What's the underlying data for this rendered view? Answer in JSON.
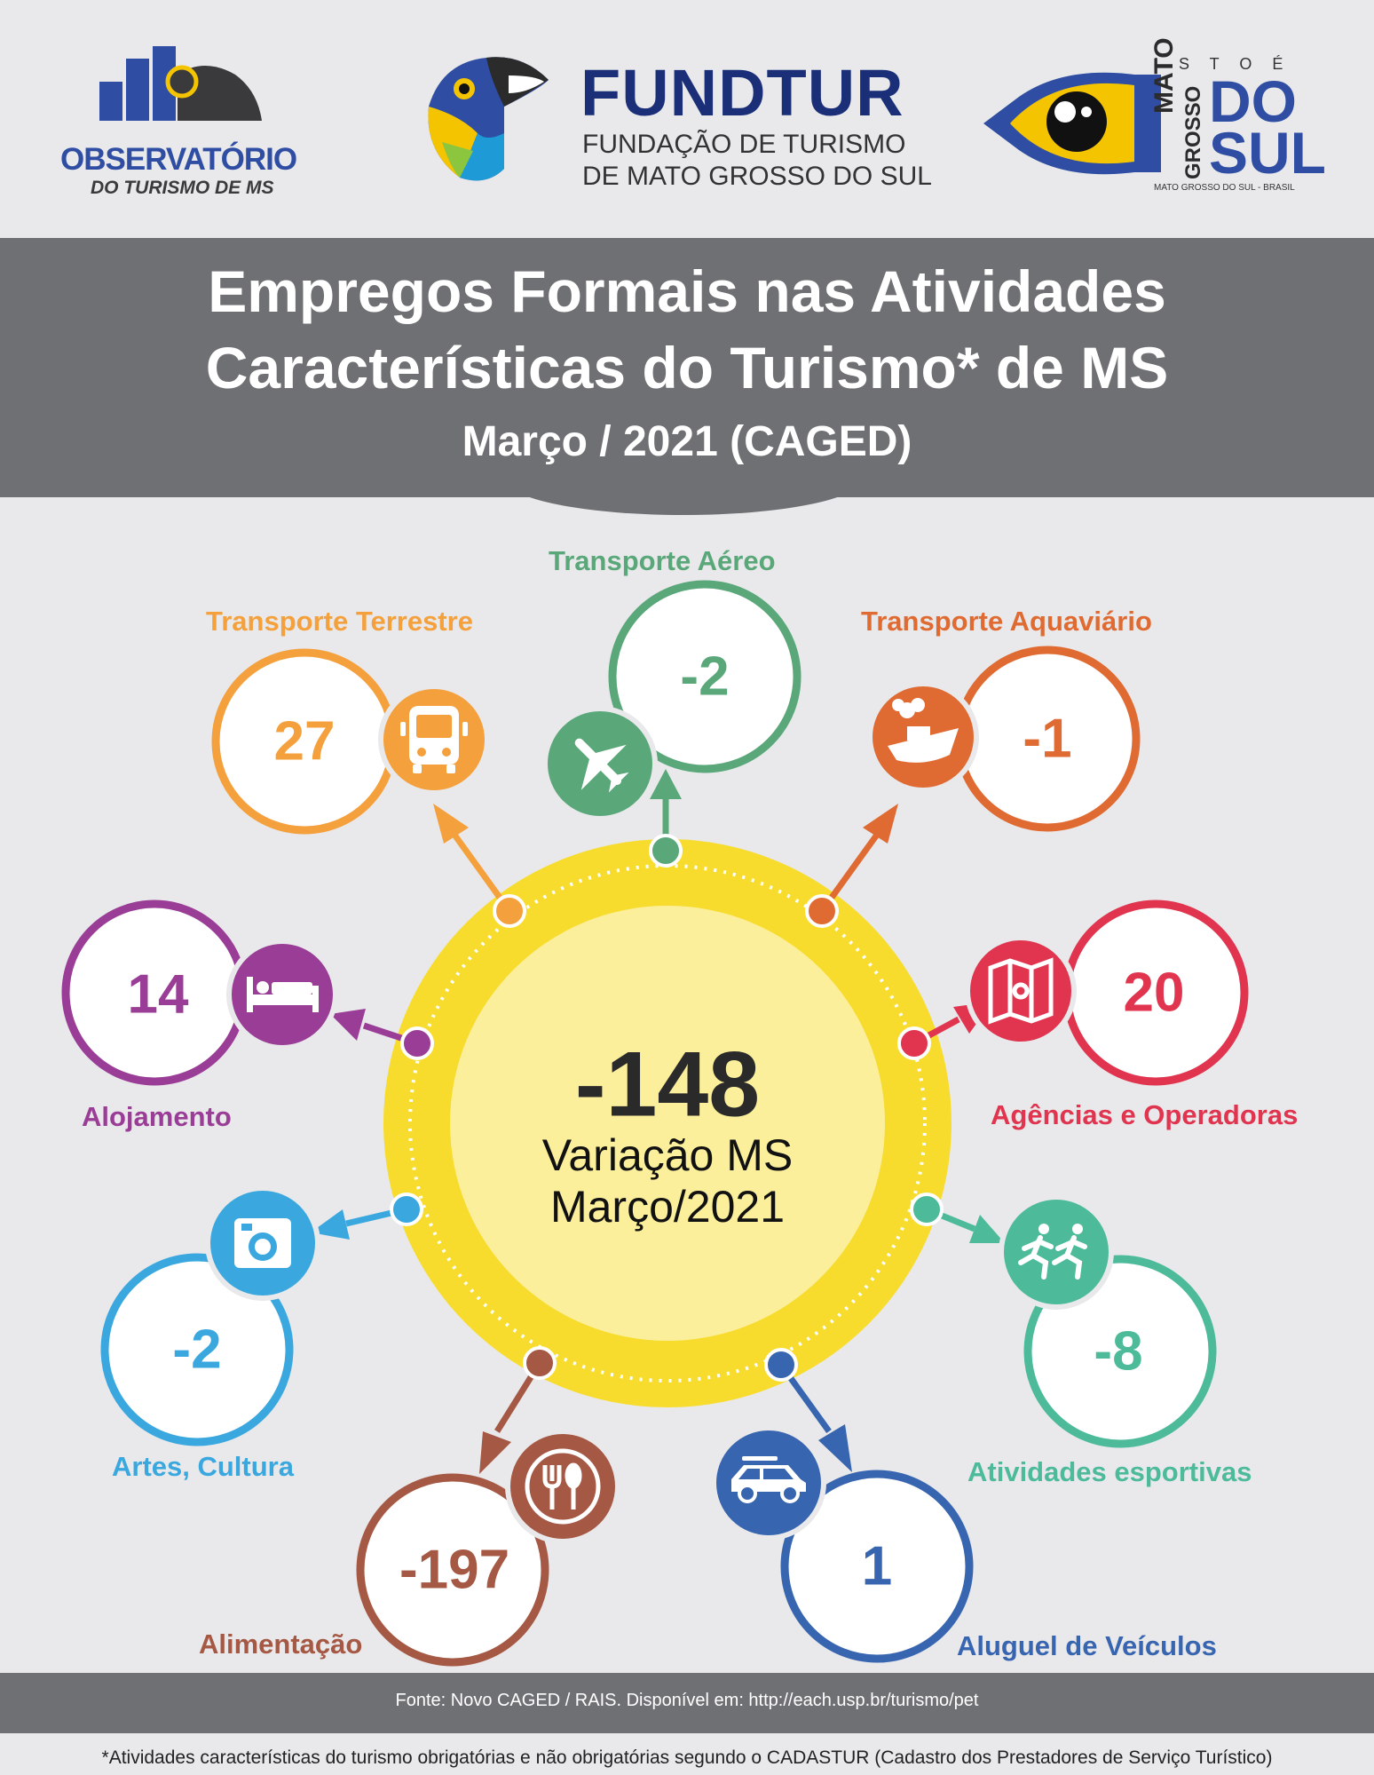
{
  "header": {
    "observatorio": {
      "line1": "OBSERVATÓRIO",
      "line2": "DO TURISMO DE MS"
    },
    "fundtur": {
      "name": "FUNDTUR",
      "line1": "FUNDAÇÃO DE TURISMO",
      "line2": "DE MATO GROSSO DO SUL"
    },
    "ms_brand": {
      "top": "I S T O  É",
      "mato": "MATO",
      "grosso": "GROSSO",
      "do": "DO",
      "sul": "SUL",
      "tagline": "MATO GROSSO DO SUL - BRASIL"
    }
  },
  "title": {
    "line1": "Empregos Formais nas Atividades",
    "line2": "Características do Turismo* de MS",
    "subtitle": "Março / 2021 (CAGED)"
  },
  "center": {
    "value": "-148",
    "caption1": "Variação MS",
    "caption2": "Março/2021"
  },
  "categories": [
    {
      "name": "Transporte Aéreo",
      "value": "-2",
      "color": "#5aa77a",
      "icon": "airplane-icon"
    },
    {
      "name": "Transporte Terrestre",
      "value": "27",
      "color": "#f4a03c",
      "icon": "bus-icon"
    },
    {
      "name": "Transporte Aquaviário",
      "value": "-1",
      "color": "#e06b32",
      "icon": "ship-icon"
    },
    {
      "name": "Alojamento",
      "value": "14",
      "color": "#9a3d96",
      "icon": "bed-icon"
    },
    {
      "name": "Agências e Operadoras",
      "value": "20",
      "color": "#e0344f",
      "icon": "map-icon"
    },
    {
      "name": "Artes, Cultura",
      "value": "-2",
      "color": "#3aa8df",
      "icon": "camera-icon"
    },
    {
      "name": "Atividades esportivas",
      "value": "-8",
      "color": "#4dbb9a",
      "icon": "runners-icon"
    },
    {
      "name": "Alimentação",
      "value": "-197",
      "color": "#a55843",
      "icon": "fork-spoon-icon"
    },
    {
      "name": "Aluguel de Veículos",
      "value": "1",
      "color": "#3865b0",
      "icon": "car-icon"
    }
  ],
  "footer": {
    "source": "Fonte: Novo CAGED / RAIS. Disponível em: http://each.usp.br/turismo/pet",
    "note": "*Atividades características do turismo obrigatórias e não obrigatórias segundo o CADASTUR (Cadastro dos Prestadores de Serviço Turístico)"
  }
}
